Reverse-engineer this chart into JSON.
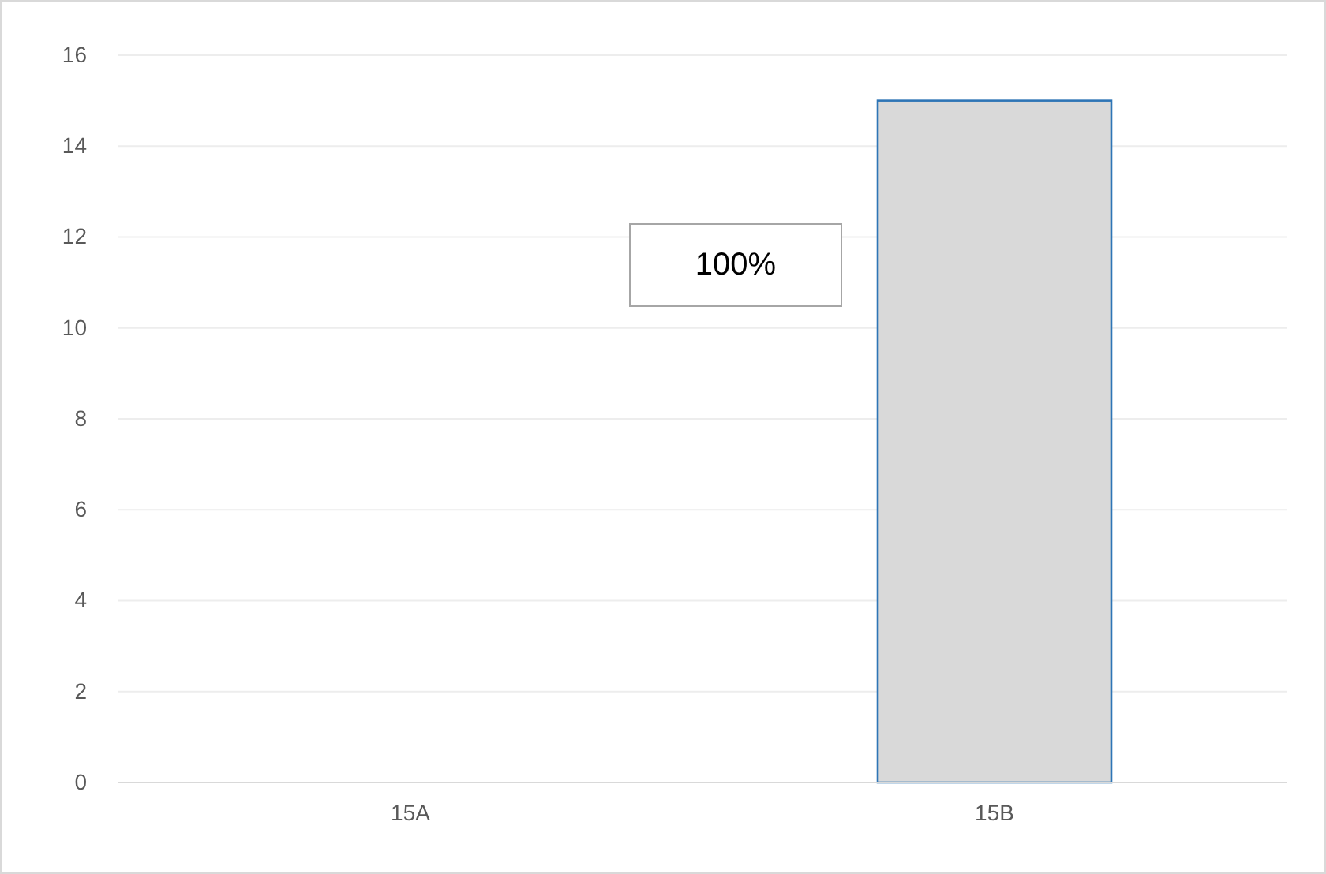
{
  "chart_data": {
    "type": "bar",
    "categories": [
      "15A",
      "15B"
    ],
    "values": [
      0,
      15
    ],
    "color": "#d9d9d9",
    "ylim": [
      0,
      16
    ],
    "yticks": [
      0,
      2,
      4,
      6,
      8,
      10,
      12,
      14,
      16
    ],
    "grid": "y",
    "annotations": [
      "100%"
    ]
  }
}
